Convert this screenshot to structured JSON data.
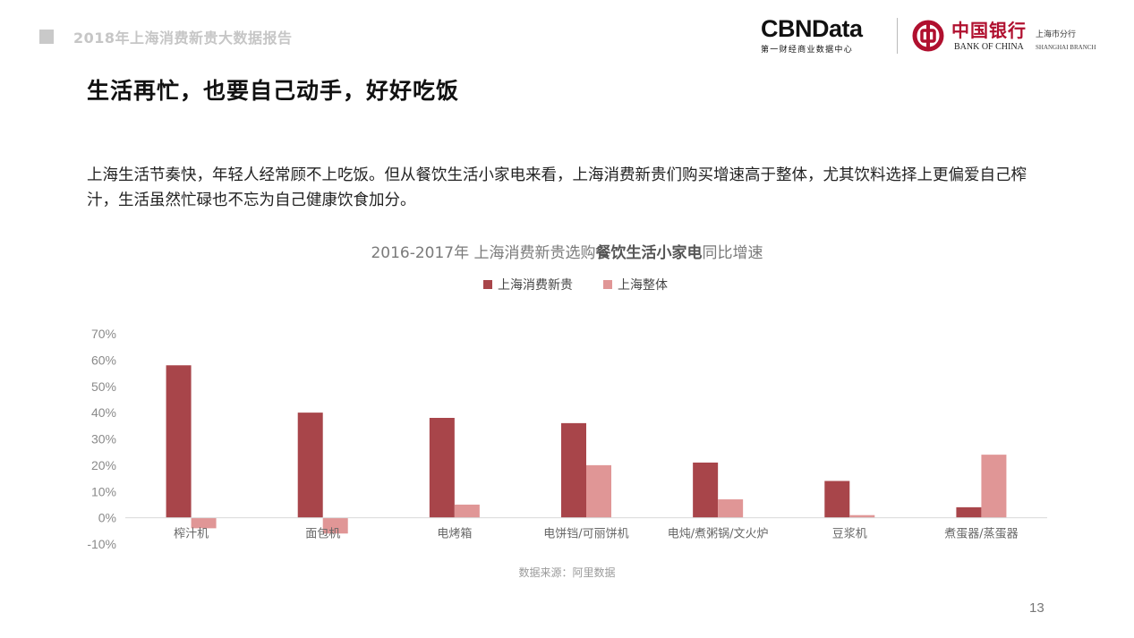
{
  "header": {
    "report_title": "2018年上海消费新贵大数据报告",
    "cbn_logo": "CBNData",
    "cbn_subtitle": "第一财经商业数据中心",
    "boc_name_cn": "中国银行",
    "boc_name_en": "BANK OF CHINA",
    "boc_branch_cn": "上海市分行",
    "boc_branch_en": "SHANGHAI BRANCH"
  },
  "page_heading": "生活再忙，也要自己动手，好好吃饭",
  "intro_text": "上海生活节奏快，年轻人经常顾不上吃饭。但从餐饮生活小家电来看，上海消费新贵们购买增速高于整体，尤其饮料选择上更偏爱自己榨汁，生活虽然忙碌也不忘为自己健康饮食加分。",
  "chart_data": {
    "type": "bar",
    "title_prefix": "2016-2017年 上海消费新贵选购",
    "title_emphasis": "餐饮生活小家电",
    "title_suffix": "同比增速",
    "categories": [
      "榨汁机",
      "面包机",
      "电烤箱",
      "电饼铛/可丽饼机",
      "电炖/煮粥锅/文火炉",
      "豆浆机",
      "煮蛋器/蒸蛋器"
    ],
    "series": [
      {
        "name": "上海消费新贵",
        "color": "#a8454a",
        "values": [
          0.58,
          0.4,
          0.38,
          0.36,
          0.21,
          0.14,
          0.04
        ]
      },
      {
        "name": "上海整体",
        "color": "#e09696",
        "values": [
          -0.04,
          -0.06,
          0.05,
          0.2,
          0.07,
          0.01,
          0.24
        ]
      }
    ],
    "ylim": [
      -0.1,
      0.7
    ],
    "yticks": [
      0.7,
      0.6,
      0.5,
      0.4,
      0.3,
      0.2,
      0.1,
      0.0,
      -0.1
    ],
    "ytick_labels": [
      "70%",
      "60%",
      "50%",
      "40%",
      "30%",
      "20%",
      "10%",
      "0%",
      "-10%"
    ],
    "legend_position": "top-center",
    "grid": false
  },
  "source": "数据来源：阿里数据",
  "page_number": "13"
}
